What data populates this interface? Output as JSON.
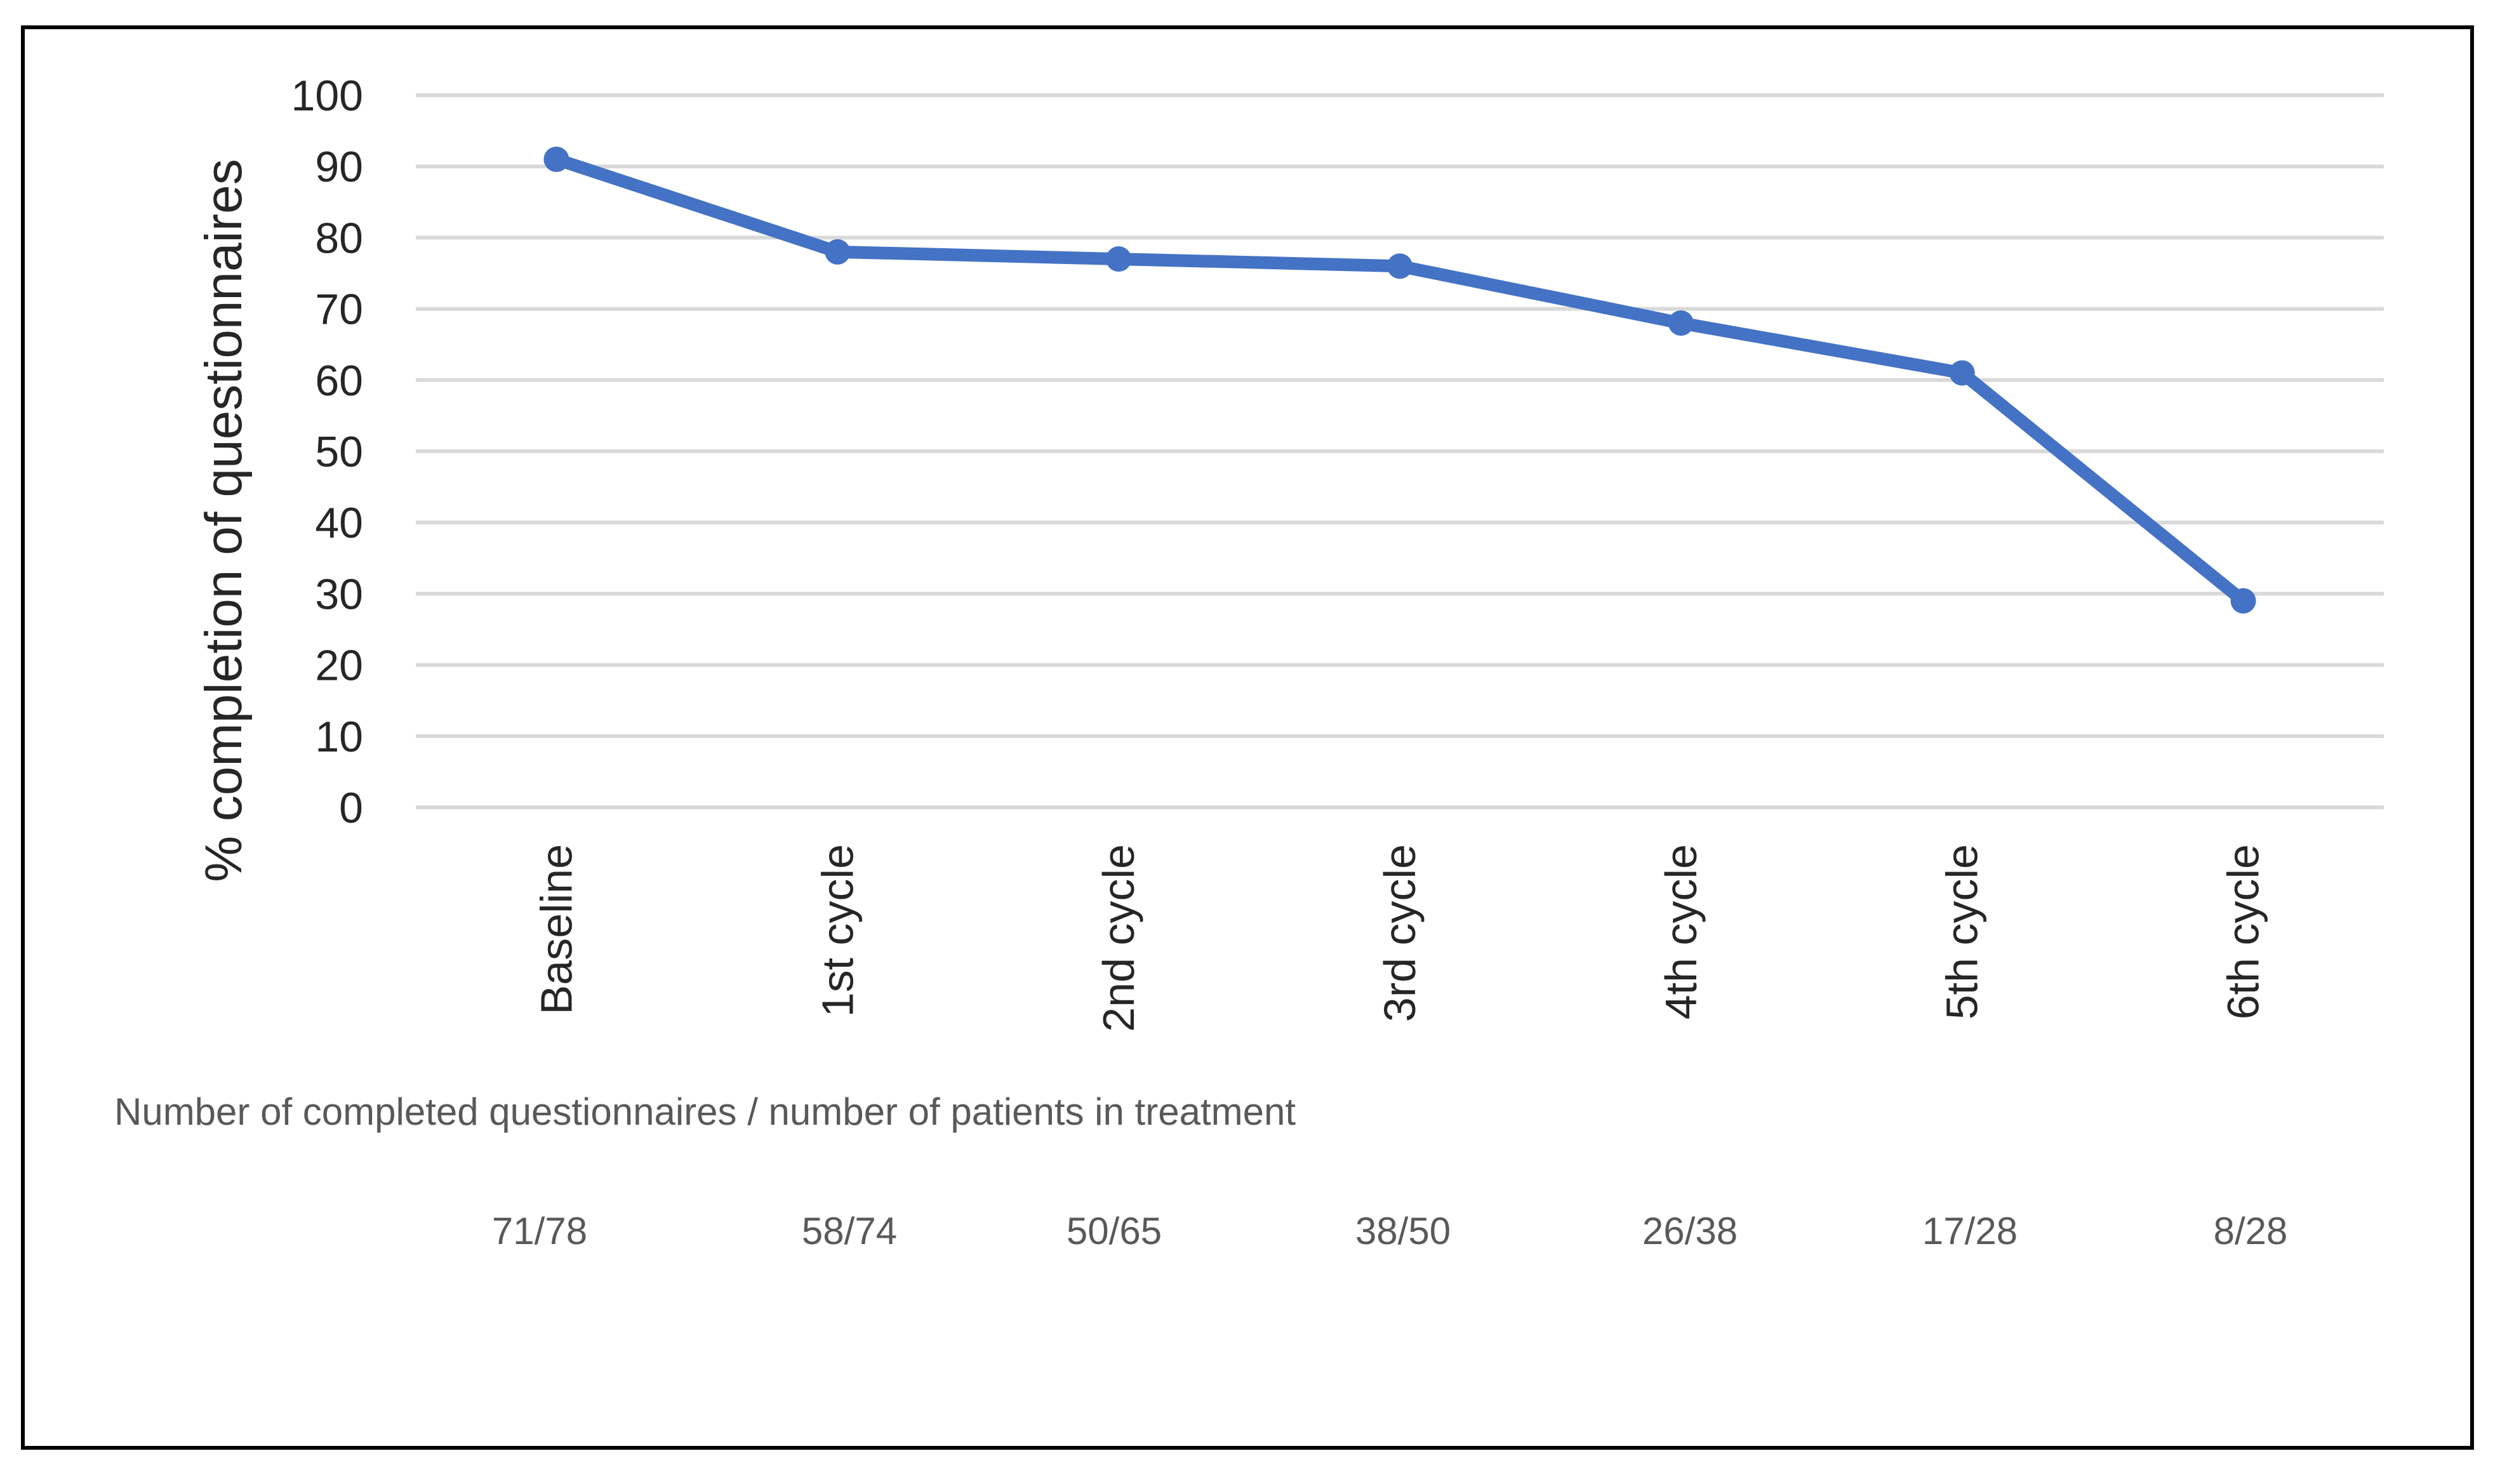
{
  "chart_data": {
    "type": "line",
    "categories": [
      "Baseline",
      "1st cycle",
      "2nd cycle",
      "3rd cycle",
      "4th cycle",
      "5th cycle",
      "6th cycle"
    ],
    "series": [
      {
        "name": "% completion of questionnaires",
        "values": [
          91,
          78,
          77,
          76,
          68,
          61,
          29
        ]
      }
    ],
    "ylabel": "% completion of questionnaires",
    "xlabel": "",
    "ylim": [
      0,
      100
    ],
    "yticks": [
      0,
      10,
      20,
      30,
      40,
      50,
      60,
      70,
      80,
      90,
      100
    ],
    "grid": true,
    "legend": "none",
    "note": "Number of completed questionnaires / number of patients in treatment",
    "ratios": [
      "71/78",
      "58/74",
      "50/65",
      "38/50",
      "26/38",
      "17/28",
      "8/28"
    ],
    "colors": {
      "series": "#4472c4",
      "grid": "#d9d9d9",
      "text": "#262626",
      "note": "#595959"
    }
  }
}
